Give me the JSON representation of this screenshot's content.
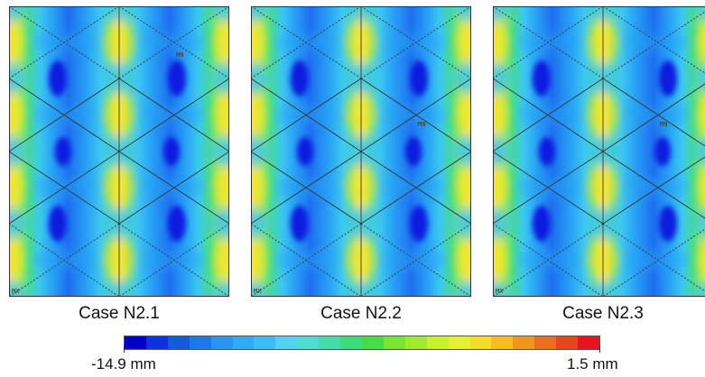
{
  "panels": [
    {
      "caption": "Case N2.1",
      "markers": {
        "mn": "MN",
        "mx": "MX"
      }
    },
    {
      "caption": "Case N2.2",
      "markers": {
        "mn": "MN",
        "mx": "MX"
      }
    },
    {
      "caption": "Case N2.3",
      "markers": {
        "mn": "MN",
        "mx": "MX"
      }
    }
  ],
  "colorbar": {
    "min_label": "-14.9 mm",
    "max_label": "1.5 mm",
    "colors": [
      "#0000c8",
      "#0a32e0",
      "#145adc",
      "#1e78e8",
      "#2896f0",
      "#32aaf5",
      "#3cbef5",
      "#50d2f0",
      "#50dcd2",
      "#46dcaa",
      "#3cdc78",
      "#46dc46",
      "#78e632",
      "#a0eb2d",
      "#c8f02d",
      "#e6f032",
      "#f5dc28",
      "#f5be1e",
      "#f0961e",
      "#eb6e1e",
      "#e6461e",
      "#e6141e"
    ]
  },
  "colors": {
    "deep_blue": "#0a1ee0",
    "blue": "#1e6ef0",
    "light_blue": "#28a0f5",
    "cyan": "#3cc8f0",
    "green": "#46dc8c",
    "yellow_green": "#aaeb3c",
    "yellow": "#f5e632",
    "frame": "#333333"
  }
}
